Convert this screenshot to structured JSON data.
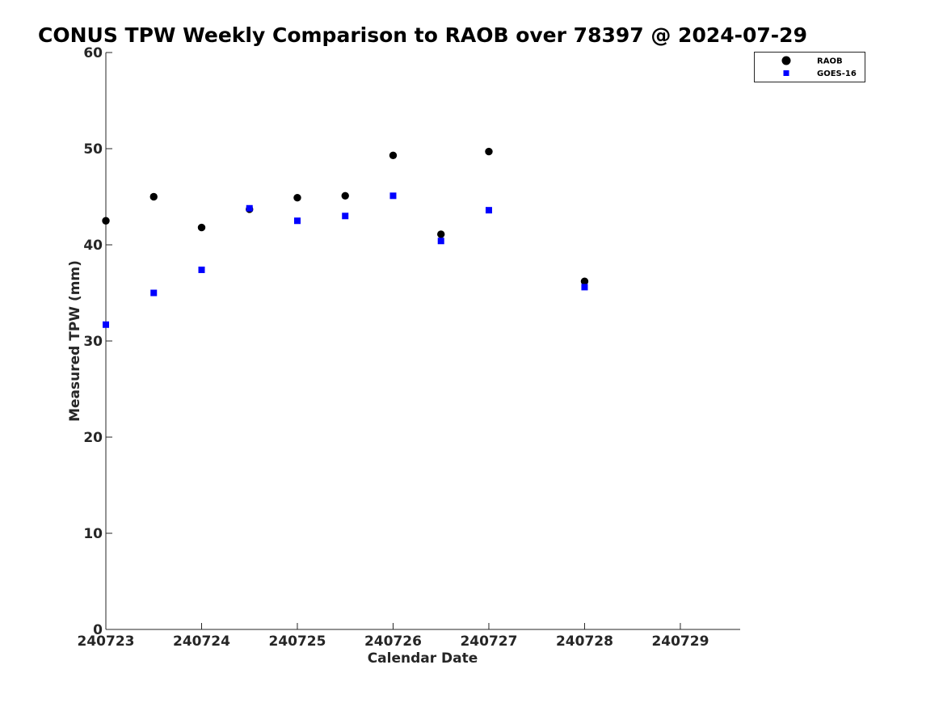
{
  "chart_data": {
    "type": "scatter",
    "title": "CONUS TPW Weekly Comparison to RAOB over 78397 @ 2024-07-29",
    "xlabel": "Calendar Date",
    "ylabel": "Measured TPW (mm)",
    "xlim": [
      "2024-07-23",
      "2024-07-29T15:00"
    ],
    "ylim": [
      0,
      60
    ],
    "xticks": [
      {
        "value": "2024-07-23",
        "label": "240723"
      },
      {
        "value": "2024-07-24",
        "label": "240724"
      },
      {
        "value": "2024-07-25",
        "label": "240725"
      },
      {
        "value": "2024-07-26",
        "label": "240726"
      },
      {
        "value": "2024-07-27",
        "label": "240727"
      },
      {
        "value": "2024-07-28",
        "label": "240728"
      },
      {
        "value": "2024-07-29",
        "label": "240729"
      }
    ],
    "yticks": [
      0,
      10,
      20,
      30,
      40,
      50,
      60
    ],
    "grid": false,
    "legend_position": "top-right",
    "series": [
      {
        "name": "RAOB",
        "marker": "circle",
        "color": "#000000",
        "points": [
          {
            "x": "2024-07-23T00:00",
            "y": 42.5
          },
          {
            "x": "2024-07-23T12:00",
            "y": 45.0
          },
          {
            "x": "2024-07-24T00:00",
            "y": 41.8
          },
          {
            "x": "2024-07-24T12:00",
            "y": 43.7
          },
          {
            "x": "2024-07-25T00:00",
            "y": 44.9
          },
          {
            "x": "2024-07-25T12:00",
            "y": 45.1
          },
          {
            "x": "2024-07-26T00:00",
            "y": 49.3
          },
          {
            "x": "2024-07-26T12:00",
            "y": 41.1
          },
          {
            "x": "2024-07-27T00:00",
            "y": 49.7
          },
          {
            "x": "2024-07-28T00:00",
            "y": 36.2
          }
        ]
      },
      {
        "name": "GOES-16",
        "marker": "square",
        "color": "#0000ff",
        "points": [
          {
            "x": "2024-07-23T00:00",
            "y": 31.7
          },
          {
            "x": "2024-07-23T12:00",
            "y": 35.0
          },
          {
            "x": "2024-07-24T00:00",
            "y": 37.4
          },
          {
            "x": "2024-07-24T12:00",
            "y": 43.8
          },
          {
            "x": "2024-07-25T00:00",
            "y": 42.5
          },
          {
            "x": "2024-07-25T12:00",
            "y": 43.0
          },
          {
            "x": "2024-07-26T00:00",
            "y": 45.1
          },
          {
            "x": "2024-07-26T12:00",
            "y": 40.4
          },
          {
            "x": "2024-07-27T00:00",
            "y": 43.6
          },
          {
            "x": "2024-07-28T00:00",
            "y": 35.6
          }
        ]
      }
    ]
  }
}
